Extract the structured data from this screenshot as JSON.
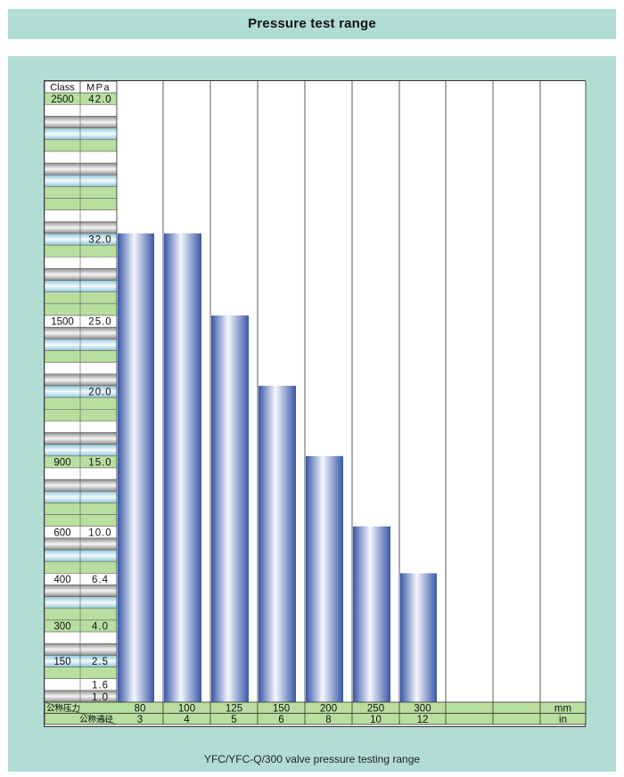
{
  "header": {
    "title": "Pressure test range"
  },
  "caption": "YFC/YFC-Q/300 valve pressure testing range",
  "chart_data": {
    "type": "bar",
    "title": "Pressure test range",
    "row_header": {
      "class": "Class",
      "mpa": "MPa"
    },
    "y_labels": [
      {
        "class": "2500",
        "mpa": "42.0",
        "value": 42.0
      },
      {
        "class": "",
        "mpa": "32.0",
        "value": 32.0
      },
      {
        "class": "1500",
        "mpa": "25.0",
        "value": 25.0
      },
      {
        "class": "",
        "mpa": "20.0",
        "value": 20.0
      },
      {
        "class": "900",
        "mpa": "15.0",
        "value": 15.0
      },
      {
        "class": "600",
        "mpa": "10.0",
        "value": 10.0
      },
      {
        "class": "400",
        "mpa": "6.4",
        "value": 6.4
      },
      {
        "class": "300",
        "mpa": "4.0",
        "value": 4.0
      },
      {
        "class": "150",
        "mpa": "2.5",
        "value": 2.5
      },
      {
        "class": "",
        "mpa": "1.6",
        "value": 1.6
      },
      {
        "class": "",
        "mpa": "1.0",
        "value": 1.0
      }
    ],
    "row1_label": "公称压力",
    "row2_label": "公称通径",
    "categories": [
      "80",
      "100",
      "125",
      "150",
      "200",
      "250",
      "300",
      "",
      "",
      ""
    ],
    "categories_in": [
      "3",
      "4",
      "5",
      "6",
      "8",
      "10",
      "12",
      "",
      "",
      ""
    ],
    "unit_mm": "mm",
    "unit_in": "in",
    "values": [
      32.0,
      32.0,
      25.0,
      20.0,
      15.0,
      10.0,
      6.4,
      null,
      null,
      null
    ],
    "colors": {
      "bar_edge": "#3a57a8",
      "bar_center": "#f4f7fd",
      "panel": "#b2ddd4",
      "row_green": "#b9dfa0",
      "row_gray": "#c4c4c4",
      "row_blue": "#c6e4ee"
    }
  }
}
